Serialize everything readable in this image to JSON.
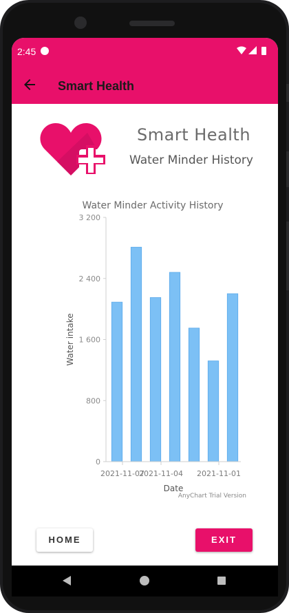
{
  "status_bar": {
    "time": "2:45"
  },
  "app_bar": {
    "title": "Smart Health"
  },
  "header": {
    "app_name": "Smart Health",
    "subtitle": "Water Minder History"
  },
  "colors": {
    "primary": "#e8106a",
    "bar": "#7cc0f5",
    "bar_stroke": "#5aa9ea"
  },
  "chart_data": {
    "type": "bar",
    "title": "Water Minder Activity History",
    "xlabel": "Date",
    "ylabel": "Water intake",
    "categories": [
      "2021-11-07",
      "",
      "2021-11-04",
      "",
      "",
      "2021-11-01",
      ""
    ],
    "x_tick_labels": [
      "2021-11-07",
      "2021-11-04",
      "2021-11-01"
    ],
    "values": [
      2090,
      2810,
      2150,
      2480,
      1750,
      1320,
      2200
    ],
    "ylim": [
      0,
      3200
    ],
    "y_ticks": [
      "0",
      "800",
      "1 600",
      "2 400",
      "3 200"
    ],
    "watermark": "AnyChart Trial Version"
  },
  "buttons": {
    "home": "HOME",
    "exit": "EXIT"
  }
}
